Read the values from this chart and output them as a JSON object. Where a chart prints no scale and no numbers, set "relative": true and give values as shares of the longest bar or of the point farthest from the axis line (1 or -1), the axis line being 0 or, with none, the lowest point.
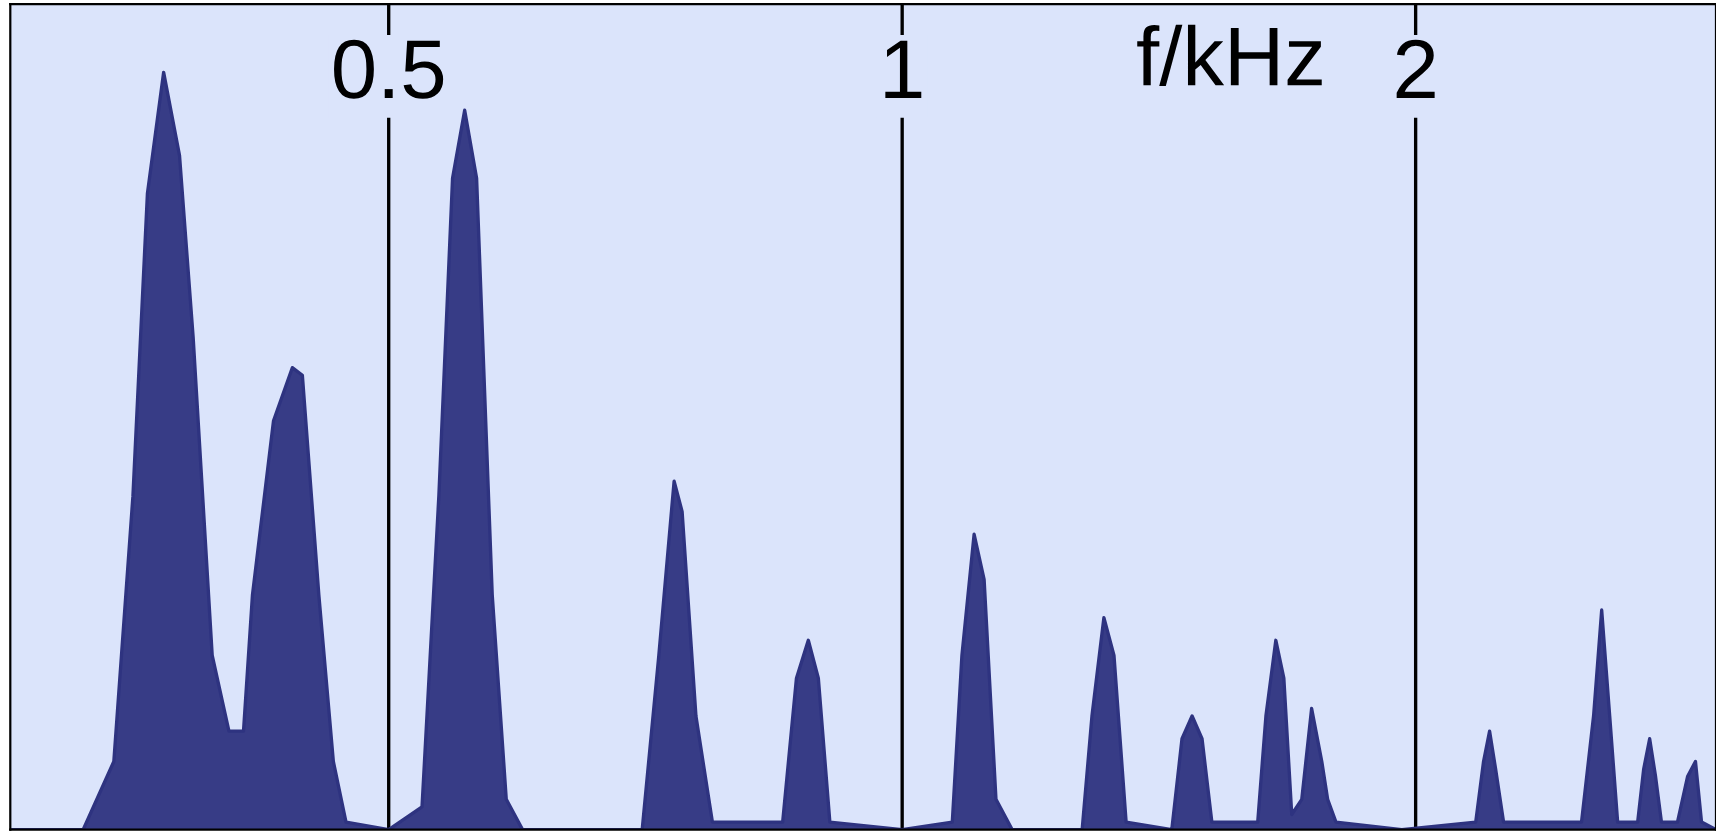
{
  "chart_data": {
    "type": "area",
    "relative": true,
    "xlabel": "f/kHz",
    "log": "x",
    "xlim": [
      0.3,
      3.0
    ],
    "xticks": [
      0.5,
      1,
      2
    ],
    "grid": "x",
    "series": [
      {
        "color": "#2e3380",
        "x": [
          0.301,
          0.331,
          0.345,
          0.354,
          0.361,
          0.369,
          0.377,
          0.384,
          0.394,
          0.403,
          0.411,
          0.416,
          0.428,
          0.439,
          0.445,
          0.455,
          0.464,
          0.472,
          0.5,
          0.523,
          0.535,
          0.545,
          0.554,
          0.563,
          0.575,
          0.586,
          0.599,
          0.704,
          0.72,
          0.735,
          0.743,
          0.757,
          0.774,
          0.851,
          0.867,
          0.881,
          0.893,
          0.907,
          1.0,
          1.07,
          1.084,
          1.102,
          1.117,
          1.135,
          1.16,
          1.275,
          1.292,
          1.313,
          1.331,
          1.353,
          1.439,
          1.459,
          1.479,
          1.499,
          1.519,
          1.616,
          1.634,
          1.656,
          1.674,
          1.692,
          1.715,
          1.738,
          1.762,
          1.776,
          1.796,
          1.963,
          2.169,
          2.192,
          2.21,
          2.228,
          2.252,
          2.502,
          2.543,
          2.571,
          2.599,
          2.627,
          2.699,
          2.721,
          2.743,
          2.765,
          2.787,
          2.848,
          2.887,
          2.918,
          2.942,
          3.0
        ],
        "values": [
          0,
          0,
          0.09,
          0.44,
          0.84,
          1,
          0.89,
          0.65,
          0.23,
          0.13,
          0.13,
          0.31,
          0.54,
          0.61,
          0.6,
          0.31,
          0.09,
          0.01,
          0,
          0.03,
          0.44,
          0.86,
          0.95,
          0.86,
          0.31,
          0.04,
          0,
          0,
          0.23,
          0.46,
          0.42,
          0.15,
          0.01,
          0.01,
          0.2,
          0.25,
          0.2,
          0.01,
          0,
          0.01,
          0.23,
          0.39,
          0.33,
          0.04,
          0,
          0,
          0.15,
          0.28,
          0.23,
          0.01,
          0,
          0.12,
          0.15,
          0.12,
          0.01,
          0.01,
          0.15,
          0.25,
          0.2,
          0.02,
          0.04,
          0.16,
          0.09,
          0.04,
          0.01,
          0,
          0.01,
          0.09,
          0.13,
          0.08,
          0.01,
          0.01,
          0.15,
          0.29,
          0.15,
          0.01,
          0.01,
          0.08,
          0.12,
          0.07,
          0.01,
          0.01,
          0.07,
          0.09,
          0.01,
          0
        ]
      }
    ]
  }
}
